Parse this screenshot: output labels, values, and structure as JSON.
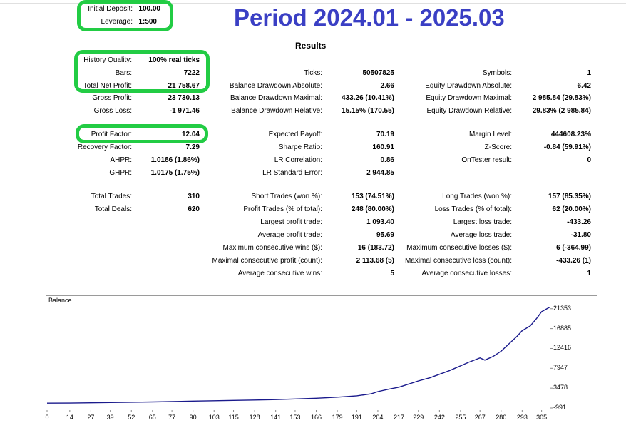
{
  "header": {
    "initial_deposit_label": "Initial Deposit:",
    "initial_deposit_value": "100.00",
    "leverage_label": "Leverage:",
    "leverage_value": "1:500",
    "period_title": "Period 2024.01 - 2025.03",
    "results_title": "Results"
  },
  "col1": {
    "history_quality": {
      "label": "History Quality:",
      "value": "100% real ticks"
    },
    "bars": {
      "label": "Bars:",
      "value": "7222"
    },
    "total_net_profit": {
      "label": "Total Net Profit:",
      "value": "21 758.67"
    },
    "gross_profit": {
      "label": "Gross Profit:",
      "value": "23 730.13"
    },
    "gross_loss": {
      "label": "Gross Loss:",
      "value": "-1 971.46"
    },
    "profit_factor": {
      "label": "Profit Factor:",
      "value": "12.04"
    },
    "recovery_factor": {
      "label": "Recovery Factor:",
      "value": "7.29"
    },
    "ahpr": {
      "label": "AHPR:",
      "value": "1.0186 (1.86%)"
    },
    "ghpr": {
      "label": "GHPR:",
      "value": "1.0175 (1.75%)"
    },
    "total_trades": {
      "label": "Total Trades:",
      "value": "310"
    },
    "total_deals": {
      "label": "Total Deals:",
      "value": "620"
    }
  },
  "col2": {
    "ticks": {
      "label": "Ticks:",
      "value": "50507825"
    },
    "balance_dd_abs": {
      "label": "Balance Drawdown Absolute:",
      "value": "2.66"
    },
    "balance_dd_max": {
      "label": "Balance Drawdown Maximal:",
      "value": "433.26 (10.41%)"
    },
    "balance_dd_rel": {
      "label": "Balance Drawdown Relative:",
      "value": "15.15% (170.55)"
    },
    "expected_payoff": {
      "label": "Expected Payoff:",
      "value": "70.19"
    },
    "sharpe_ratio": {
      "label": "Sharpe Ratio:",
      "value": "160.91"
    },
    "lr_correlation": {
      "label": "LR Correlation:",
      "value": "0.86"
    },
    "lr_standard_error": {
      "label": "LR Standard Error:",
      "value": "2 944.85"
    },
    "short_trades": {
      "label": "Short Trades (won %):",
      "value": "153 (74.51%)"
    },
    "profit_trades": {
      "label": "Profit Trades (% of total):",
      "value": "248 (80.00%)"
    },
    "largest_profit_trade": {
      "label": "Largest profit trade:",
      "value": "1 093.40"
    },
    "average_profit_trade": {
      "label": "Average profit trade:",
      "value": "95.69"
    },
    "max_consecutive_wins": {
      "label": "Maximum consecutive wins ($):",
      "value": "16 (183.72)"
    },
    "maximal_consecutive_profit": {
      "label": "Maximal consecutive profit (count):",
      "value": "2 113.68 (5)"
    },
    "average_consecutive_wins": {
      "label": "Average consecutive wins:",
      "value": "5"
    }
  },
  "col3": {
    "symbols": {
      "label": "Symbols:",
      "value": "1"
    },
    "equity_dd_abs": {
      "label": "Equity Drawdown Absolute:",
      "value": "6.42"
    },
    "equity_dd_max": {
      "label": "Equity Drawdown Maximal:",
      "value": "2 985.84 (29.83%)"
    },
    "equity_dd_rel": {
      "label": "Equity Drawdown Relative:",
      "value": "29.83% (2 985.84)"
    },
    "margin_level": {
      "label": "Margin Level:",
      "value": "444608.23%"
    },
    "z_score": {
      "label": "Z-Score:",
      "value": "-0.84 (59.91%)"
    },
    "ontester_result": {
      "label": "OnTester result:",
      "value": "0"
    },
    "long_trades": {
      "label": "Long Trades (won %):",
      "value": "157 (85.35%)"
    },
    "loss_trades": {
      "label": "Loss Trades (% of total):",
      "value": "62 (20.00%)"
    },
    "largest_loss_trade": {
      "label": "Largest loss trade:",
      "value": "-433.26"
    },
    "average_loss_trade": {
      "label": "Average loss trade:",
      "value": "-31.80"
    },
    "max_consecutive_losses": {
      "label": "Maximum consecutive losses ($):",
      "value": "6 (-364.99)"
    },
    "maximal_consecutive_loss": {
      "label": "Maximal consecutive loss (count):",
      "value": "-433.26 (1)"
    },
    "average_consecutive_losses": {
      "label": "Average consecutive losses:",
      "value": "1"
    }
  },
  "highlight_color": "#22cc44",
  "title_color": "#3a3fc4",
  "chart_data": {
    "type": "line",
    "title": "Balance",
    "line_color": "#1a1a8c",
    "xlim": [
      0,
      310
    ],
    "ylim": [
      -991,
      21800
    ],
    "x_ticks": [
      "0",
      "14",
      "27",
      "39",
      "52",
      "65",
      "77",
      "90",
      "103",
      "115",
      "128",
      "141",
      "153",
      "166",
      "179",
      "191",
      "204",
      "217",
      "229",
      "242",
      "255",
      "267",
      "280",
      "293",
      "305"
    ],
    "y_ticks": [
      "21353",
      "16885",
      "12416",
      "7947",
      "3478",
      "-991"
    ],
    "series": [
      {
        "x": [
          0,
          14,
          27,
          39,
          52,
          65,
          77,
          90,
          103,
          115,
          128,
          141,
          153,
          166,
          179,
          191,
          200,
          204,
          210,
          217,
          223,
          229,
          236,
          242,
          248,
          255,
          260,
          267,
          270,
          275,
          280,
          285,
          290,
          293,
          298,
          302,
          305,
          310
        ],
        "y": [
          100,
          110,
          180,
          250,
          310,
          380,
          450,
          560,
          650,
          720,
          800,
          900,
          1050,
          1200,
          1450,
          1750,
          2200,
          2700,
          3200,
          3700,
          4400,
          5100,
          5800,
          6600,
          7400,
          8500,
          9300,
          10300,
          9800,
          10600,
          11800,
          13500,
          15200,
          16400,
          17500,
          19200,
          20700,
          21700
        ]
      }
    ]
  }
}
